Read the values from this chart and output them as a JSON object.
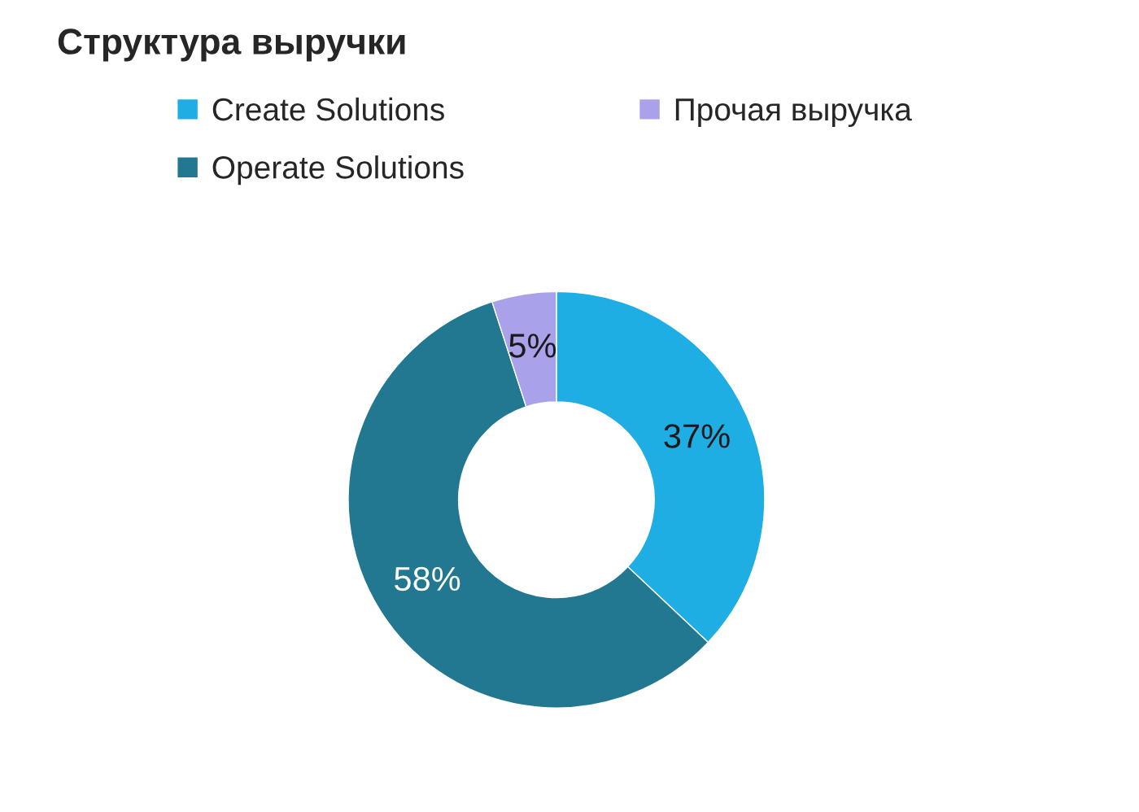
{
  "chart_data": {
    "type": "donut",
    "title": "Структура выручки",
    "categories": [
      "Create Solutions",
      "Operate Solutions",
      "Прочая выручка"
    ],
    "values": [
      37,
      58,
      5
    ],
    "colors": [
      "#1eaee3",
      "#237891",
      "#a9a2ea"
    ],
    "value_labels": [
      "37%",
      "58%",
      "5%"
    ],
    "legend": "top"
  }
}
